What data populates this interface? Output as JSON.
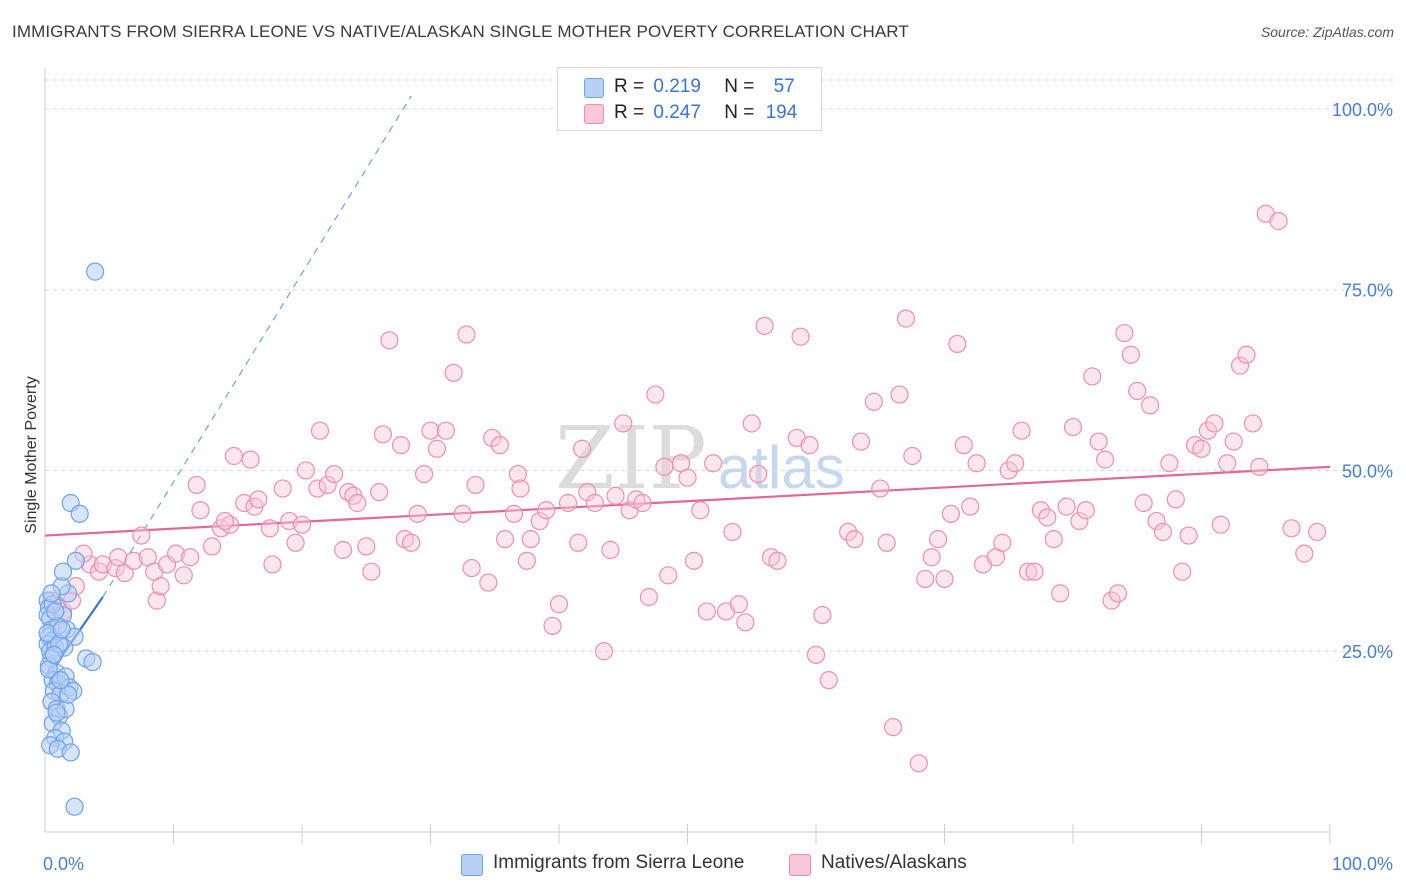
{
  "header": {
    "title": "IMMIGRANTS FROM SIERRA LEONE VS NATIVE/ALASKAN SINGLE MOTHER POVERTY CORRELATION CHART",
    "source": "Source: ZipAtlas.com"
  },
  "legend": {
    "rows": [
      {
        "r_label": "R =",
        "r_value": "0.219",
        "n_label": "N =",
        "n_value": "57"
      },
      {
        "r_label": "R =",
        "r_value": "0.247",
        "n_label": "N =",
        "n_value": "194"
      }
    ]
  },
  "bottom_legend": {
    "series_1": "Immigrants from Sierra Leone",
    "series_2": "Natives/Alaskans"
  },
  "watermark": {
    "zip": "ZIP",
    "atlas": "atlas"
  },
  "colors": {
    "series_1": "#6fa2e8",
    "series_1_fill": "#b7d0f4",
    "series_1_line": "#3a76d4",
    "series_2": "#ee8fb0",
    "series_2_fill": "#f8c8d8",
    "series_2_line": "#e06996",
    "tick_text": "#4a7fd0",
    "grid": "#d9d9d9"
  },
  "chart_data": {
    "type": "scatter",
    "title": "IMMIGRANTS FROM SIERRA LEONE VS NATIVE/ALASKAN SINGLE MOTHER POVERTY CORRELATION CHART",
    "xlabel": "",
    "ylabel": "Single Mother Poverty",
    "xlim": [
      0,
      100
    ],
    "ylim": [
      0,
      104
    ],
    "x_tick_labels": [
      "0.0%",
      "100.0%"
    ],
    "y_ticks": [
      25,
      50,
      75,
      100
    ],
    "y_tick_labels": [
      "25.0%",
      "50.0%",
      "75.0%",
      "100.0%"
    ],
    "grid": true,
    "series": [
      {
        "name": "Immigrants from Sierra Leone",
        "r": 0.219,
        "n": 57,
        "trend_solid": {
          "x": [
            0.2,
            4.5
          ],
          "y": [
            21.5,
            32.5
          ]
        },
        "trend_dashed": {
          "x": [
            4.5,
            28.5
          ],
          "y": [
            32.5,
            101.8
          ]
        },
        "points": [
          [
            0.2,
            32
          ],
          [
            0.3,
            31
          ],
          [
            0.2,
            30
          ],
          [
            0.4,
            29.5
          ],
          [
            0.5,
            28
          ],
          [
            0.3,
            27
          ],
          [
            0.6,
            26.5
          ],
          [
            0.2,
            26
          ],
          [
            0.4,
            25
          ],
          [
            0.8,
            25.5
          ],
          [
            0.5,
            24
          ],
          [
            0.3,
            23
          ],
          [
            0.9,
            22
          ],
          [
            0.6,
            21
          ],
          [
            1.0,
            20.5
          ],
          [
            0.7,
            19.5
          ],
          [
            1.2,
            19
          ],
          [
            0.5,
            18
          ],
          [
            0.9,
            17
          ],
          [
            1.1,
            16
          ],
          [
            0.6,
            15
          ],
          [
            1.3,
            14
          ],
          [
            0.8,
            13
          ],
          [
            1.5,
            12.5
          ],
          [
            0.4,
            12
          ],
          [
            1.0,
            11.5
          ],
          [
            2.0,
            11
          ],
          [
            1.4,
            30
          ],
          [
            1.8,
            33
          ],
          [
            1.3,
            34
          ],
          [
            1.4,
            36
          ],
          [
            2.4,
            37.5
          ],
          [
            2.0,
            45.5
          ],
          [
            2.7,
            44
          ],
          [
            1.7,
            28
          ],
          [
            2.3,
            27
          ],
          [
            1.5,
            25.5
          ],
          [
            1.0,
            28.5
          ],
          [
            0.3,
            22.5
          ],
          [
            3.2,
            24
          ],
          [
            3.7,
            23.5
          ],
          [
            1.6,
            21.5
          ],
          [
            1.9,
            20
          ],
          [
            2.2,
            19.5
          ],
          [
            1.6,
            17
          ],
          [
            1.8,
            19
          ],
          [
            0.9,
            16.5
          ],
          [
            1.2,
            21
          ],
          [
            0.6,
            31.5
          ],
          [
            0.8,
            30.5
          ],
          [
            0.5,
            33
          ],
          [
            0.2,
            27.5
          ],
          [
            1.1,
            26
          ],
          [
            0.7,
            24.5
          ],
          [
            2.3,
            3.5
          ],
          [
            3.9,
            77.5
          ],
          [
            1.3,
            28
          ]
        ]
      },
      {
        "name": "Natives/Alaskans",
        "r": 0.247,
        "n": 194,
        "trend": {
          "x": [
            0,
            100
          ],
          "y": [
            41,
            50.5
          ]
        },
        "points": [
          [
            0.5,
            32
          ],
          [
            1.0,
            31
          ],
          [
            1.4,
            30.5
          ],
          [
            2.1,
            32
          ],
          [
            2.4,
            34
          ],
          [
            3.5,
            37
          ],
          [
            4.2,
            36
          ],
          [
            4.5,
            37
          ],
          [
            5.5,
            36.5
          ],
          [
            6.2,
            35.8
          ],
          [
            5.7,
            38
          ],
          [
            6.9,
            37.5
          ],
          [
            7.5,
            41
          ],
          [
            8.0,
            38
          ],
          [
            8.5,
            36
          ],
          [
            8.7,
            32
          ],
          [
            9.5,
            37
          ],
          [
            10.2,
            38.5
          ],
          [
            10.8,
            35.5
          ],
          [
            11.3,
            38
          ],
          [
            11.8,
            48
          ],
          [
            12.1,
            44.5
          ],
          [
            13.0,
            39.5
          ],
          [
            13.7,
            42
          ],
          [
            14.4,
            42.5
          ],
          [
            14.7,
            52
          ],
          [
            15.5,
            45.5
          ],
          [
            16.0,
            51.5
          ],
          [
            16.3,
            45
          ],
          [
            16.6,
            46
          ],
          [
            17.5,
            42
          ],
          [
            17.7,
            37
          ],
          [
            18.5,
            47.5
          ],
          [
            19.0,
            43
          ],
          [
            19.5,
            40
          ],
          [
            20.0,
            42.5
          ],
          [
            20.3,
            50
          ],
          [
            21.2,
            47.5
          ],
          [
            21.4,
            55.5
          ],
          [
            22.0,
            48
          ],
          [
            22.5,
            49.5
          ],
          [
            23.2,
            39
          ],
          [
            23.6,
            47
          ],
          [
            24.0,
            46.5
          ],
          [
            24.3,
            45.5
          ],
          [
            25.0,
            39.5
          ],
          [
            25.4,
            36
          ],
          [
            26.0,
            47
          ],
          [
            26.3,
            55
          ],
          [
            26.8,
            68
          ],
          [
            27.7,
            53.5
          ],
          [
            28.0,
            40.5
          ],
          [
            28.5,
            40
          ],
          [
            29.0,
            44
          ],
          [
            29.5,
            49.5
          ],
          [
            30.0,
            55.5
          ],
          [
            31.2,
            55.5
          ],
          [
            31.8,
            63.5
          ],
          [
            32.5,
            44
          ],
          [
            32.8,
            68.8
          ],
          [
            33.2,
            36.5
          ],
          [
            33.5,
            48
          ],
          [
            34.5,
            34.5
          ],
          [
            34.8,
            54.5
          ],
          [
            35.4,
            53.5
          ],
          [
            35.8,
            40.5
          ],
          [
            36.5,
            44
          ],
          [
            36.8,
            49.5
          ],
          [
            37.0,
            47.5
          ],
          [
            37.5,
            37.5
          ],
          [
            37.8,
            40.5
          ],
          [
            38.5,
            43
          ],
          [
            39.0,
            44.5
          ],
          [
            39.5,
            28.5
          ],
          [
            40.0,
            31.5
          ],
          [
            40.7,
            45.5
          ],
          [
            41.5,
            40
          ],
          [
            41.8,
            53
          ],
          [
            42.2,
            47
          ],
          [
            42.8,
            45.5
          ],
          [
            43.5,
            25
          ],
          [
            44.0,
            39
          ],
          [
            44.4,
            46.5
          ],
          [
            45.0,
            56.5
          ],
          [
            45.5,
            44.5
          ],
          [
            46.0,
            46
          ],
          [
            46.5,
            45.5
          ],
          [
            47.0,
            32.5
          ],
          [
            47.5,
            60.5
          ],
          [
            48.2,
            50.5
          ],
          [
            48.5,
            35.5
          ],
          [
            49.5,
            51
          ],
          [
            50.0,
            49
          ],
          [
            50.5,
            37.5
          ],
          [
            51.0,
            44.5
          ],
          [
            51.5,
            30.5
          ],
          [
            52.0,
            51
          ],
          [
            53.0,
            30.5
          ],
          [
            53.5,
            41.5
          ],
          [
            54.0,
            31.5
          ],
          [
            54.5,
            29
          ],
          [
            55.0,
            56.5
          ],
          [
            55.5,
            49.5
          ],
          [
            56.0,
            70
          ],
          [
            56.5,
            38
          ],
          [
            57.0,
            37.5
          ],
          [
            58.5,
            54.5
          ],
          [
            58.8,
            68.5
          ],
          [
            59.5,
            53.5
          ],
          [
            60.0,
            24.5
          ],
          [
            60.5,
            30
          ],
          [
            61.0,
            21
          ],
          [
            62.5,
            41.5
          ],
          [
            63.0,
            40.5
          ],
          [
            63.5,
            54
          ],
          [
            64.5,
            59.5
          ],
          [
            65.0,
            47.5
          ],
          [
            65.5,
            40
          ],
          [
            66.0,
            14.5
          ],
          [
            66.5,
            60.5
          ],
          [
            67.0,
            71
          ],
          [
            67.5,
            52
          ],
          [
            68.0,
            9.5
          ],
          [
            68.5,
            35
          ],
          [
            69.0,
            38
          ],
          [
            69.5,
            40.5
          ],
          [
            70.0,
            35
          ],
          [
            70.5,
            44
          ],
          [
            71.0,
            67.5
          ],
          [
            71.5,
            53.5
          ],
          [
            72.0,
            45
          ],
          [
            72.5,
            51
          ],
          [
            73.0,
            37
          ],
          [
            74.0,
            38
          ],
          [
            74.5,
            40
          ],
          [
            75.0,
            50
          ],
          [
            75.5,
            51
          ],
          [
            76.0,
            55.5
          ],
          [
            76.5,
            36
          ],
          [
            77.0,
            36
          ],
          [
            77.5,
            44.5
          ],
          [
            78.0,
            43.5
          ],
          [
            78.5,
            40.5
          ],
          [
            79.0,
            33
          ],
          [
            79.5,
            45
          ],
          [
            80.0,
            56
          ],
          [
            80.5,
            43
          ],
          [
            81.0,
            44.5
          ],
          [
            81.5,
            63
          ],
          [
            82.0,
            54
          ],
          [
            82.5,
            51.5
          ],
          [
            83.0,
            32
          ],
          [
            83.5,
            33
          ],
          [
            84.0,
            69
          ],
          [
            84.5,
            66
          ],
          [
            85.0,
            61
          ],
          [
            85.5,
            45.5
          ],
          [
            86.0,
            59
          ],
          [
            86.5,
            43
          ],
          [
            87.0,
            41.5
          ],
          [
            87.5,
            51
          ],
          [
            88.0,
            46
          ],
          [
            88.5,
            36
          ],
          [
            89.0,
            41
          ],
          [
            89.5,
            53.5
          ],
          [
            90.0,
            53
          ],
          [
            90.5,
            55.5
          ],
          [
            91.0,
            56.5
          ],
          [
            91.5,
            42.5
          ],
          [
            92.0,
            51
          ],
          [
            92.5,
            54
          ],
          [
            93.0,
            64.5
          ],
          [
            93.5,
            66
          ],
          [
            94.0,
            56.5
          ],
          [
            94.5,
            50.5
          ],
          [
            95.0,
            85.5
          ],
          [
            96.0,
            84.5
          ],
          [
            97.0,
            42
          ],
          [
            98.0,
            38.5
          ],
          [
            99.0,
            41.5
          ],
          [
            30.5,
            53
          ],
          [
            14.0,
            43
          ],
          [
            9.0,
            34
          ],
          [
            3.0,
            38.5
          ]
        ]
      }
    ]
  }
}
